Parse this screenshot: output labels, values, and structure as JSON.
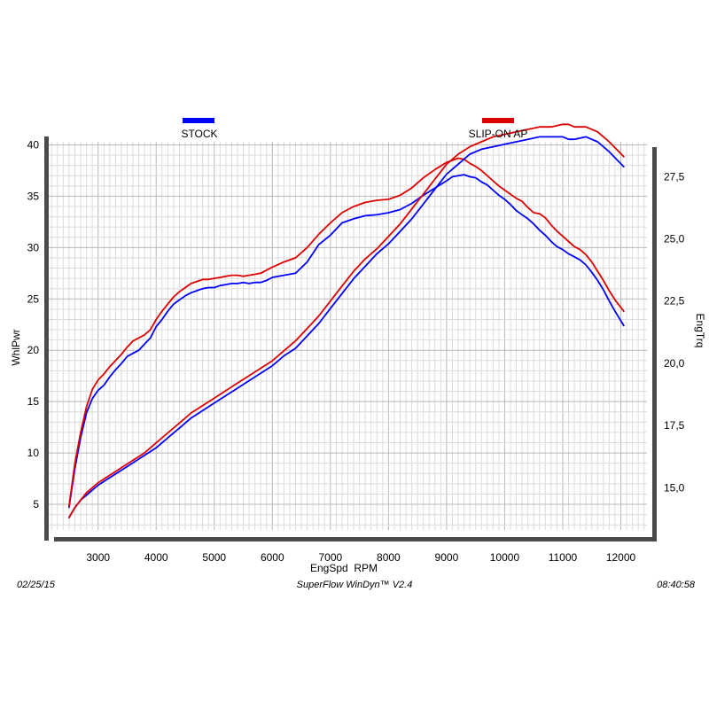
{
  "chart_data": {
    "type": "line",
    "xlabel": "EngSpd  RPM",
    "ylabel_left": "WhlPwr",
    "ylabel_right": "EngTrq",
    "xlim": [
      2150,
      12450
    ],
    "ylim_left": [
      2.5,
      40.3
    ],
    "ylim_right": [
      13.3,
      28.9
    ],
    "x_ticks": [
      3000,
      4000,
      5000,
      6000,
      7000,
      8000,
      9000,
      10000,
      11000,
      12000
    ],
    "y_left_ticks": [
      5,
      10,
      15,
      20,
      25,
      30,
      35,
      40
    ],
    "y_right_ticks": [
      "15,0",
      "17,5",
      "20,0",
      "22,5",
      "25,0",
      "27,5"
    ],
    "y_right_tick_values": [
      15,
      17.5,
      20,
      22.5,
      25,
      27.5
    ],
    "grid": true,
    "legend": [
      {
        "label": "STOCK",
        "color": "#0000ff"
      },
      {
        "label": "SLIP-ON AP",
        "color": "#dd0000"
      }
    ],
    "series": [
      {
        "name": "STOCK",
        "quantity": "WhlPwr",
        "axis": "left",
        "color": "#0000ff",
        "x": [
          2500,
          2600,
          2700,
          2800,
          2900,
          3000,
          3100,
          3200,
          3300,
          3400,
          3500,
          3600,
          3700,
          3800,
          3900,
          4000,
          4100,
          4200,
          4300,
          4400,
          4500,
          4600,
          4700,
          4800,
          4900,
          5000,
          5100,
          5200,
          5300,
          5400,
          5500,
          5600,
          5700,
          5800,
          5900,
          6000,
          6200,
          6400,
          6600,
          6800,
          7000,
          7200,
          7400,
          7600,
          7800,
          8000,
          8200,
          8400,
          8600,
          8800,
          9000,
          9100,
          9200,
          9300,
          9400,
          9500,
          9600,
          9700,
          9800,
          9900,
          10000,
          10100,
          10200,
          10300,
          10400,
          10500,
          10600,
          10700,
          10800,
          10900,
          11000,
          11100,
          11200,
          11300,
          11400,
          11500,
          11600,
          11700,
          11800,
          11900,
          12050
        ],
        "values": [
          4.7,
          8.5,
          11.5,
          13.9,
          15.3,
          16.1,
          16.6,
          17.4,
          18.1,
          18.7,
          19.4,
          19.7,
          20.0,
          20.6,
          21.2,
          22.3,
          23.0,
          23.8,
          24.5,
          24.9,
          25.3,
          25.6,
          25.8,
          26.0,
          26.1,
          26.1,
          26.3,
          26.4,
          26.5,
          26.5,
          26.6,
          26.5,
          26.6,
          26.6,
          26.8,
          27.1,
          27.3,
          27.5,
          28.6,
          30.3,
          31.2,
          32.4,
          32.8,
          33.1,
          33.2,
          33.4,
          33.7,
          34.3,
          35.1,
          35.8,
          36.5,
          36.9,
          37.0,
          37.1,
          36.9,
          36.8,
          36.4,
          36.1,
          35.6,
          35.1,
          34.7,
          34.2,
          33.6,
          33.2,
          32.8,
          32.3,
          31.7,
          31.2,
          30.6,
          30.1,
          29.8,
          29.4,
          29.1,
          28.8,
          28.3,
          27.6,
          26.8,
          25.9,
          24.8,
          23.8,
          22.4
        ]
      },
      {
        "name": "SLIP-ON AP",
        "quantity": "WhlPwr",
        "axis": "left",
        "color": "#dd0000",
        "x": [
          2500,
          2600,
          2700,
          2800,
          2900,
          3000,
          3100,
          3200,
          3300,
          3400,
          3500,
          3600,
          3700,
          3800,
          3900,
          4000,
          4100,
          4200,
          4300,
          4400,
          4500,
          4600,
          4700,
          4800,
          4900,
          5000,
          5100,
          5200,
          5300,
          5400,
          5500,
          5600,
          5700,
          5800,
          5900,
          6000,
          6200,
          6400,
          6600,
          6800,
          7000,
          7200,
          7400,
          7600,
          7800,
          8000,
          8200,
          8400,
          8600,
          8800,
          9000,
          9100,
          9200,
          9300,
          9400,
          9500,
          9600,
          9700,
          9800,
          9900,
          10000,
          10100,
          10200,
          10300,
          10400,
          10500,
          10600,
          10700,
          10800,
          10900,
          11000,
          11100,
          11200,
          11300,
          11400,
          11500,
          11600,
          11700,
          11800,
          11900,
          12050
        ],
        "values": [
          4.8,
          9.0,
          12.0,
          14.5,
          16.2,
          17.1,
          17.7,
          18.4,
          19.0,
          19.6,
          20.3,
          20.9,
          21.2,
          21.5,
          22.0,
          23.0,
          23.8,
          24.5,
          25.2,
          25.7,
          26.1,
          26.5,
          26.7,
          26.9,
          26.9,
          27.0,
          27.1,
          27.2,
          27.3,
          27.3,
          27.2,
          27.3,
          27.4,
          27.5,
          27.8,
          28.1,
          28.6,
          29.0,
          30.0,
          31.3,
          32.4,
          33.4,
          34.0,
          34.4,
          34.6,
          34.7,
          35.1,
          35.8,
          36.8,
          37.6,
          38.3,
          38.5,
          38.7,
          38.6,
          38.2,
          37.9,
          37.5,
          37.0,
          36.5,
          36.0,
          35.6,
          35.2,
          34.8,
          34.5,
          33.9,
          33.4,
          33.3,
          32.9,
          32.2,
          31.6,
          31.1,
          30.6,
          30.1,
          29.8,
          29.3,
          28.6,
          27.7,
          26.8,
          25.8,
          24.9,
          23.8
        ]
      },
      {
        "name": "STOCK",
        "quantity": "EngTrq",
        "axis": "right",
        "color": "#0000ff",
        "x": [
          2500,
          2600,
          2700,
          2800,
          2900,
          3000,
          3200,
          3400,
          3600,
          3800,
          4000,
          4200,
          4400,
          4600,
          4800,
          5000,
          5200,
          5400,
          5600,
          5800,
          6000,
          6200,
          6400,
          6600,
          6800,
          7000,
          7200,
          7400,
          7600,
          7800,
          8000,
          8200,
          8400,
          8600,
          8800,
          9000,
          9200,
          9400,
          9600,
          9800,
          10000,
          10200,
          10400,
          10600,
          10800,
          11000,
          11100,
          11200,
          11400,
          11600,
          11800,
          12050
        ],
        "values": [
          13.8,
          14.2,
          14.5,
          14.7,
          14.9,
          15.1,
          15.4,
          15.7,
          16.0,
          16.3,
          16.6,
          17.0,
          17.4,
          17.8,
          18.1,
          18.4,
          18.7,
          19.0,
          19.3,
          19.6,
          19.9,
          20.3,
          20.6,
          21.1,
          21.6,
          22.2,
          22.8,
          23.4,
          23.9,
          24.4,
          24.8,
          25.3,
          25.8,
          26.4,
          27.0,
          27.6,
          28.0,
          28.4,
          28.6,
          28.7,
          28.8,
          28.9,
          29.0,
          29.1,
          29.1,
          29.1,
          29.0,
          29.0,
          29.1,
          28.9,
          28.5,
          27.9
        ]
      },
      {
        "name": "SLIP-ON AP",
        "quantity": "EngTrq",
        "axis": "right",
        "color": "#dd0000",
        "x": [
          2500,
          2600,
          2700,
          2800,
          2900,
          3000,
          3200,
          3400,
          3600,
          3800,
          4000,
          4200,
          4400,
          4600,
          4800,
          5000,
          5200,
          5400,
          5600,
          5800,
          6000,
          6200,
          6400,
          6600,
          6800,
          7000,
          7200,
          7400,
          7600,
          7800,
          8000,
          8200,
          8400,
          8600,
          8800,
          9000,
          9200,
          9400,
          9600,
          9800,
          10000,
          10200,
          10400,
          10600,
          10800,
          11000,
          11100,
          11200,
          11400,
          11600,
          11800,
          12050
        ],
        "values": [
          13.8,
          14.2,
          14.5,
          14.8,
          15.0,
          15.2,
          15.5,
          15.8,
          16.1,
          16.4,
          16.8,
          17.2,
          17.6,
          18.0,
          18.3,
          18.6,
          18.9,
          19.2,
          19.5,
          19.8,
          20.1,
          20.5,
          20.9,
          21.4,
          21.9,
          22.5,
          23.1,
          23.7,
          24.2,
          24.6,
          25.1,
          25.6,
          26.2,
          26.8,
          27.4,
          28.0,
          28.4,
          28.7,
          28.9,
          29.1,
          29.2,
          29.3,
          29.4,
          29.5,
          29.5,
          29.6,
          29.6,
          29.5,
          29.5,
          29.3,
          28.9,
          28.3
        ]
      }
    ]
  },
  "footer": {
    "date": "02/25/15",
    "software": "SuperFlow WinDyn™ V2.4",
    "time": "08:40:58"
  }
}
